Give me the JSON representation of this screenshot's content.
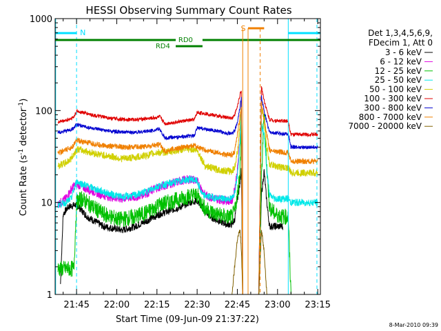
{
  "chart_data": {
    "type": "line",
    "title": "HESSI Observing Summary Count Rates",
    "xlabel": "Start Time (09-Jun-09 21:37:22)",
    "ylabel_main": "Count Rate (s",
    "ylabel_sup1": "-1",
    "ylabel_mid": " detector",
    "ylabel_sup2": "-1",
    "ylabel_end": ")",
    "yscale": "log",
    "ylim": [
      1,
      1000
    ],
    "xlim_minutes": [
      0,
      99
    ],
    "x_ticks": [
      {
        "m": 8,
        "label": "21:45"
      },
      {
        "m": 23,
        "label": "22:00"
      },
      {
        "m": 38,
        "label": "22:15"
      },
      {
        "m": 53,
        "label": "22:30"
      },
      {
        "m": 68,
        "label": "22:45"
      },
      {
        "m": 83,
        "label": "23:00"
      },
      {
        "m": 98,
        "label": "23:15"
      }
    ],
    "y_ticks": [
      {
        "v": 1,
        "label": "1"
      },
      {
        "v": 10,
        "label": "10"
      },
      {
        "v": 100,
        "label": "100"
      },
      {
        "v": 1000,
        "label": "1000"
      }
    ],
    "legend_header": [
      "Det 1,3,4,5,6,9,",
      "FDecim 1, Att 0"
    ],
    "series": [
      {
        "name": "3 - 6 keV",
        "color": "#000000",
        "points": [
          [
            2,
            1.3
          ],
          [
            3,
            7.5
          ],
          [
            5,
            9
          ],
          [
            8,
            9.5
          ],
          [
            12,
            7
          ],
          [
            18,
            5.5
          ],
          [
            25,
            5
          ],
          [
            30,
            5.5
          ],
          [
            35,
            6.5
          ],
          [
            39,
            7.5
          ],
          [
            42,
            8
          ],
          [
            47,
            9
          ],
          [
            50,
            10
          ],
          [
            53,
            10.5
          ],
          [
            56,
            8
          ],
          [
            58,
            7
          ],
          [
            60,
            6.5
          ],
          [
            64,
            5.8
          ],
          [
            66,
            5.8
          ],
          [
            67,
            6.5
          ],
          [
            68,
            11
          ],
          [
            69,
            16
          ],
          [
            69.5,
            25
          ],
          [
            70,
            1
          ],
          [
            73,
            1
          ],
          [
            76,
            1
          ],
          [
            77,
            12
          ],
          [
            78,
            22
          ],
          [
            79,
            10
          ],
          [
            80,
            5.5
          ],
          [
            83,
            5.5
          ],
          [
            85,
            5.5
          ]
        ]
      },
      {
        "name": "6 - 12 keV",
        "color": "#e000e0",
        "points": [
          [
            1,
            9.5
          ],
          [
            4,
            11
          ],
          [
            6,
            14
          ],
          [
            8,
            16
          ],
          [
            12,
            14
          ],
          [
            18,
            12
          ],
          [
            24,
            11
          ],
          [
            30,
            11.5
          ],
          [
            35,
            13
          ],
          [
            38,
            14.5
          ],
          [
            40,
            15
          ],
          [
            43,
            16
          ],
          [
            48,
            17.5
          ],
          [
            51,
            18
          ],
          [
            53,
            17
          ],
          [
            56,
            12
          ],
          [
            60,
            11
          ],
          [
            64,
            10.5
          ],
          [
            66,
            10.5
          ],
          [
            67,
            14
          ],
          [
            68,
            22
          ],
          [
            69,
            50
          ],
          [
            69.5,
            110
          ]
        ]
      },
      {
        "name": "12 - 25 keV",
        "color": "#00c000",
        "points": [
          [
            1,
            1.9
          ],
          [
            6,
            1.9
          ],
          [
            7,
            1.9
          ],
          [
            8,
            10
          ],
          [
            10,
            11
          ],
          [
            14,
            9
          ],
          [
            18,
            7.5
          ],
          [
            24,
            6.5
          ],
          [
            30,
            7
          ],
          [
            35,
            8
          ],
          [
            39,
            9.5
          ],
          [
            42,
            10
          ],
          [
            47,
            11
          ],
          [
            51,
            12
          ],
          [
            53,
            12
          ],
          [
            56,
            8.5
          ],
          [
            60,
            7.5
          ],
          [
            64,
            7
          ],
          [
            66,
            7
          ],
          [
            67,
            8
          ],
          [
            68,
            12
          ],
          [
            69,
            22
          ],
          [
            69.5,
            90
          ],
          [
            70,
            1
          ],
          [
            74,
            1
          ],
          [
            76,
            1
          ],
          [
            77,
            18
          ],
          [
            78,
            100
          ],
          [
            79,
            24
          ],
          [
            80,
            9
          ],
          [
            82,
            7.5
          ],
          [
            85,
            7
          ],
          [
            87,
            7
          ],
          [
            88,
            1
          ],
          [
            92,
            1
          ],
          [
            93,
            1
          ]
        ]
      },
      {
        "name": "25 - 50 keV",
        "color": "#00e8e8",
        "points": [
          [
            1,
            9.5
          ],
          [
            4,
            10
          ],
          [
            6,
            11
          ],
          [
            8,
            17
          ],
          [
            10,
            16
          ],
          [
            15,
            14
          ],
          [
            20,
            12.5
          ],
          [
            25,
            11.5
          ],
          [
            30,
            12
          ],
          [
            35,
            13.5
          ],
          [
            38,
            15
          ],
          [
            40,
            15.5
          ],
          [
            44,
            16.5
          ],
          [
            48,
            17.5
          ],
          [
            51,
            18
          ],
          [
            53,
            17
          ],
          [
            55,
            12
          ],
          [
            58,
            11.5
          ],
          [
            62,
            11
          ],
          [
            65,
            11
          ],
          [
            66,
            11
          ],
          [
            67,
            13
          ],
          [
            68,
            20
          ],
          [
            69,
            45
          ],
          [
            69.5,
            115
          ],
          [
            70,
            1
          ],
          [
            74,
            1
          ],
          [
            76,
            1
          ],
          [
            77,
            70
          ],
          [
            78,
            55
          ],
          [
            79,
            22
          ],
          [
            80,
            12
          ],
          [
            82,
            11
          ],
          [
            85,
            11
          ],
          [
            87,
            11
          ],
          [
            88,
            10
          ],
          [
            92,
            10
          ],
          [
            96,
            10
          ],
          [
            98,
            10
          ]
        ]
      },
      {
        "name": "50 - 100 keV",
        "color": "#d0d000",
        "points": [
          [
            1,
            25
          ],
          [
            4,
            27
          ],
          [
            6,
            30
          ],
          [
            8,
            38
          ],
          [
            10,
            37
          ],
          [
            15,
            34
          ],
          [
            20,
            32
          ],
          [
            25,
            30
          ],
          [
            30,
            31
          ],
          [
            35,
            33
          ],
          [
            38,
            35
          ],
          [
            40,
            35
          ],
          [
            44,
            36
          ],
          [
            48,
            38
          ],
          [
            51,
            38
          ],
          [
            53,
            37
          ],
          [
            56,
            25
          ],
          [
            60,
            23
          ],
          [
            64,
            22
          ],
          [
            66,
            22
          ],
          [
            67,
            24
          ],
          [
            68,
            35
          ],
          [
            69,
            70
          ],
          [
            69.5,
            120
          ],
          [
            70,
            1
          ],
          [
            74,
            1
          ],
          [
            76,
            1
          ],
          [
            77,
            110
          ],
          [
            78,
            80
          ],
          [
            79,
            40
          ],
          [
            80,
            26
          ],
          [
            82,
            25
          ],
          [
            85,
            24
          ],
          [
            87,
            24
          ],
          [
            88,
            21
          ],
          [
            92,
            21
          ],
          [
            96,
            21
          ],
          [
            98,
            21
          ]
        ]
      },
      {
        "name": "100 - 300 keV",
        "color": "#e00000",
        "points": [
          [
            1,
            75
          ],
          [
            4,
            78
          ],
          [
            6,
            82
          ],
          [
            7,
            85
          ],
          [
            8,
            98
          ],
          [
            10,
            96
          ],
          [
            15,
            88
          ],
          [
            20,
            83
          ],
          [
            25,
            80
          ],
          [
            30,
            80
          ],
          [
            35,
            82
          ],
          [
            38,
            84
          ],
          [
            39,
            86
          ],
          [
            41,
            72
          ],
          [
            44,
            74
          ],
          [
            48,
            77
          ],
          [
            51,
            79
          ],
          [
            52,
            80
          ],
          [
            53,
            95
          ],
          [
            56,
            93
          ],
          [
            60,
            88
          ],
          [
            64,
            84
          ],
          [
            66,
            83
          ],
          [
            67,
            90
          ],
          [
            68,
            110
          ],
          [
            69,
            150
          ],
          [
            69.5,
            160
          ],
          [
            70,
            1
          ],
          [
            74,
            1
          ],
          [
            76,
            1
          ],
          [
            77,
            180
          ],
          [
            78,
            130
          ],
          [
            79,
            100
          ],
          [
            80,
            80
          ],
          [
            82,
            78
          ],
          [
            85,
            77
          ],
          [
            87,
            77
          ],
          [
            88,
            55
          ],
          [
            92,
            55
          ],
          [
            96,
            55
          ],
          [
            98,
            55
          ]
        ]
      },
      {
        "name": "300 - 800 keV",
        "color": "#0000d0",
        "points": [
          [
            1,
            58
          ],
          [
            4,
            60
          ],
          [
            6,
            62
          ],
          [
            7,
            65
          ],
          [
            8,
            70
          ],
          [
            10,
            68
          ],
          [
            15,
            63
          ],
          [
            20,
            60
          ],
          [
            25,
            58
          ],
          [
            30,
            58
          ],
          [
            35,
            60
          ],
          [
            38,
            62
          ],
          [
            39,
            63
          ],
          [
            41,
            50
          ],
          [
            44,
            51
          ],
          [
            48,
            52
          ],
          [
            51,
            53
          ],
          [
            52,
            53
          ],
          [
            53,
            65
          ],
          [
            56,
            63
          ],
          [
            60,
            60
          ],
          [
            64,
            57
          ],
          [
            66,
            56
          ],
          [
            67,
            60
          ],
          [
            68,
            75
          ],
          [
            69,
            110
          ],
          [
            69.5,
            140
          ],
          [
            70,
            1
          ],
          [
            74,
            1
          ],
          [
            76,
            1
          ],
          [
            77,
            140
          ],
          [
            78,
            100
          ],
          [
            79,
            75
          ],
          [
            80,
            58
          ],
          [
            82,
            57
          ],
          [
            85,
            56
          ],
          [
            87,
            56
          ],
          [
            88,
            40
          ],
          [
            92,
            40
          ],
          [
            96,
            40
          ],
          [
            98,
            40
          ]
        ]
      },
      {
        "name": "800 - 7000 keV",
        "color": "#f08000",
        "points": [
          [
            1,
            35
          ],
          [
            4,
            37
          ],
          [
            6,
            40
          ],
          [
            7,
            42
          ],
          [
            8,
            48
          ],
          [
            10,
            46
          ],
          [
            15,
            43
          ],
          [
            20,
            41
          ],
          [
            25,
            40
          ],
          [
            30,
            40
          ],
          [
            35,
            41
          ],
          [
            38,
            42
          ],
          [
            39,
            43
          ],
          [
            41,
            36
          ],
          [
            44,
            38
          ],
          [
            48,
            40
          ],
          [
            51,
            41
          ],
          [
            52,
            42
          ],
          [
            53,
            40
          ],
          [
            56,
            37
          ],
          [
            60,
            35
          ],
          [
            64,
            33
          ],
          [
            66,
            33
          ],
          [
            67,
            36
          ],
          [
            68,
            55
          ],
          [
            69,
            85
          ],
          [
            69.5,
            110
          ],
          [
            70,
            1
          ],
          [
            74,
            1
          ],
          [
            76,
            1
          ],
          [
            77,
            120
          ],
          [
            78,
            80
          ],
          [
            79,
            55
          ],
          [
            80,
            37
          ],
          [
            82,
            36
          ],
          [
            85,
            35
          ],
          [
            87,
            35
          ],
          [
            88,
            28
          ],
          [
            92,
            28
          ],
          [
            96,
            28
          ],
          [
            98,
            28
          ]
        ]
      },
      {
        "name": "7000 - 20000 keV",
        "color": "#806000",
        "points": [
          [
            38,
            1
          ],
          [
            52,
            1
          ],
          [
            66,
            1
          ],
          [
            67,
            2
          ],
          [
            68,
            4
          ],
          [
            69,
            5
          ],
          [
            69.5,
            3
          ],
          [
            70,
            1
          ],
          [
            74,
            1
          ],
          [
            76,
            1
          ],
          [
            77,
            5
          ],
          [
            78,
            3
          ],
          [
            79,
            1
          ],
          [
            85,
            1
          ]
        ]
      }
    ],
    "annotations": [
      {
        "text": "N",
        "color": "#00e0ff"
      },
      {
        "text": "RD0",
        "color": "#008000"
      },
      {
        "text": "RD4",
        "color": "#008000"
      },
      {
        "text": "S",
        "color": "#f08000"
      }
    ],
    "timestamp": "8-Mar-2010 09:39"
  }
}
